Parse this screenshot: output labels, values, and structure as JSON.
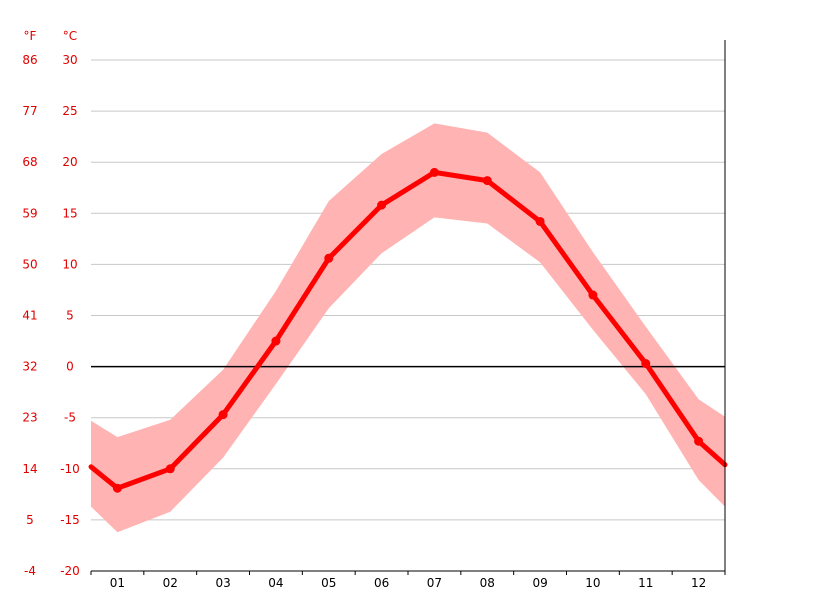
{
  "chart_data": {
    "type": "line",
    "title": "",
    "xlabel": "",
    "ylabel": "",
    "units": {
      "fahrenheit": "°F",
      "celsius": "°C"
    },
    "categories": [
      "01",
      "02",
      "03",
      "04",
      "05",
      "06",
      "07",
      "08",
      "09",
      "10",
      "11",
      "12"
    ],
    "x_range": [
      0.5,
      12.5
    ],
    "ylim": [
      -20,
      30
    ],
    "yticks_celsius": [
      30,
      25,
      20,
      15,
      10,
      5,
      0,
      -5,
      -10,
      -15,
      -20
    ],
    "yticks_fahrenheit": [
      86,
      77,
      68,
      59,
      50,
      41,
      32,
      23,
      14,
      5,
      -4
    ],
    "grid": true,
    "zero_line": true,
    "series": [
      {
        "kind": "line",
        "color": "#ff0000",
        "edge_start": -9.8,
        "edge_end": -9.6,
        "values": [
          -11.9,
          -10.0,
          -4.7,
          2.5,
          10.6,
          15.8,
          19.0,
          18.2,
          14.2,
          7.0,
          0.3,
          -7.3
        ]
      },
      {
        "kind": "band",
        "color": "#ffb3b3",
        "upper_edge_start": -5.3,
        "upper_edge_end": -4.9,
        "upper": [
          -6.9,
          -5.2,
          -0.3,
          7.4,
          16.2,
          20.8,
          23.8,
          22.9,
          19.0,
          11.2,
          3.9,
          -3.2
        ],
        "lower_edge_start": -13.7,
        "lower_edge_end": -13.7,
        "lower": [
          -16.2,
          -14.2,
          -8.9,
          -1.7,
          5.7,
          11.1,
          14.6,
          14.0,
          10.2,
          3.6,
          -2.7,
          -11.1
        ]
      }
    ]
  }
}
